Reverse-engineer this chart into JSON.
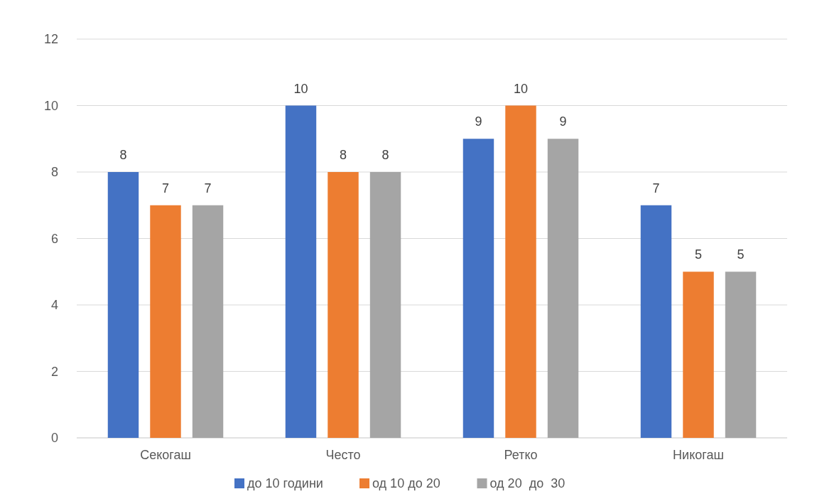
{
  "chart_data": {
    "type": "bar",
    "categories": [
      "Секогаш",
      "Често",
      "Ретко",
      "Никогаш"
    ],
    "series": [
      {
        "name": "до 10 години",
        "color": "#4472c4",
        "values": [
          8,
          10,
          9,
          7
        ]
      },
      {
        "name": "од 10 до 20",
        "color": "#ed7d31",
        "values": [
          7,
          8,
          10,
          5
        ]
      },
      {
        "name": "од 20  до  30",
        "color": "#a5a5a5",
        "values": [
          7,
          8,
          9,
          5
        ]
      }
    ],
    "ylim": [
      0,
      12
    ],
    "yticks": [
      0,
      2,
      4,
      6,
      8,
      10,
      12
    ],
    "grid": "y",
    "legend": "bottom",
    "data_labels": true
  }
}
